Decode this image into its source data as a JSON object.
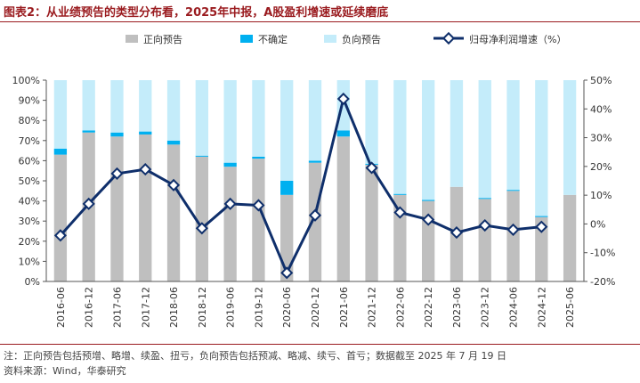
{
  "title": "图表2：从业绩预告的类型分布看，2025年中报，A股盈利增速或延续磨底",
  "note": "注：正向预告包括预增、略增、续盈、扭亏，负向预告包括预减、略减、续亏、首亏；数据截至 2025 年 7 月 19 日",
  "source": "资料来源：Wind，华泰研究",
  "colors": {
    "positive": "#bfbfbf",
    "uncertain": "#00b0f0",
    "negative": "#c4ecfa",
    "line": "#0f2f6b",
    "title": "#9a1b1f"
  },
  "chart_data": {
    "type": "bar",
    "stacked": true,
    "categories": [
      "2016-06",
      "2016-12",
      "2017-06",
      "2017-12",
      "2018-06",
      "2018-12",
      "2019-06",
      "2019-12",
      "2020-06",
      "2020-12",
      "2021-06",
      "2021-12",
      "2022-06",
      "2022-12",
      "2023-06",
      "2023-12",
      "2024-06",
      "2024-12",
      "2025-06"
    ],
    "series": [
      {
        "name": "正向预告",
        "axis": "left",
        "values": [
          63,
          74,
          72,
          73,
          68,
          62,
          57,
          61,
          43,
          59,
          72,
          58,
          43,
          40,
          47,
          41,
          45,
          32,
          43
        ]
      },
      {
        "name": "不确定",
        "axis": "left",
        "values": [
          3,
          1,
          2,
          1.5,
          2,
          0.5,
          2,
          1,
          7,
          1,
          3,
          0.5,
          0.5,
          0.5,
          0,
          0.5,
          0.5,
          0.5,
          0
        ]
      },
      {
        "name": "负向预告",
        "axis": "left",
        "values": [
          34,
          25,
          26,
          25.5,
          30,
          37.5,
          41,
          38,
          50,
          40,
          25,
          41.5,
          56.5,
          59.5,
          53,
          58.5,
          54.5,
          67.5,
          57
        ]
      },
      {
        "name": "归母净利润增速（%）",
        "type": "line",
        "axis": "right",
        "values": [
          -4,
          7,
          17.5,
          19,
          13.5,
          -1.5,
          7,
          6.5,
          -17,
          3,
          43.5,
          19.5,
          4,
          1.5,
          -3,
          -0.5,
          -2,
          -1,
          null
        ]
      }
    ],
    "y_left": {
      "min": 0,
      "max": 100,
      "step": 10,
      "ticks": [
        "0%",
        "10%",
        "20%",
        "30%",
        "40%",
        "50%",
        "60%",
        "70%",
        "80%",
        "90%",
        "100%"
      ]
    },
    "y_right": {
      "min": -20,
      "max": 50,
      "step": 10,
      "ticks": [
        "-20%",
        "-10%",
        "0%",
        "10%",
        "20%",
        "30%",
        "40%",
        "50%"
      ]
    },
    "legend_position": "top",
    "grid": false
  }
}
